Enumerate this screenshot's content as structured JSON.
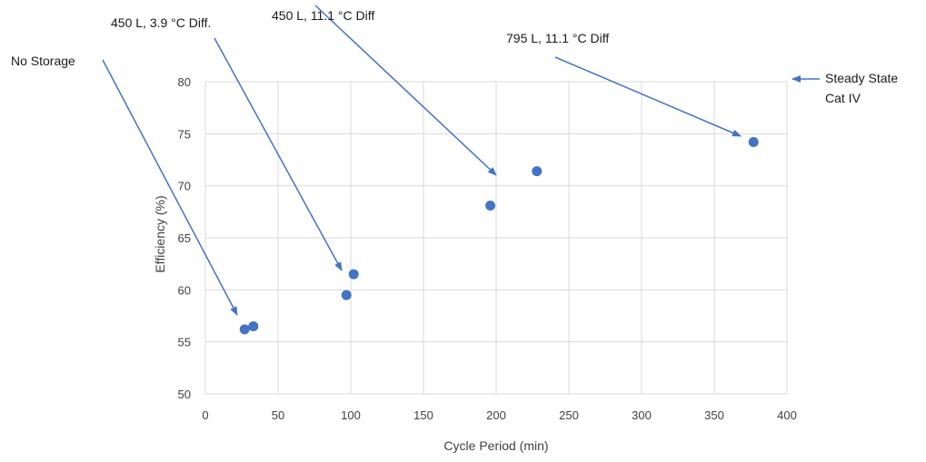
{
  "chart_data": {
    "type": "scatter",
    "xlabel": "Cycle Period (min)",
    "ylabel": "Efficiency (%)",
    "xlim": [
      0,
      400
    ],
    "ylim": [
      50,
      80
    ],
    "x_ticks": [
      0,
      50,
      100,
      150,
      200,
      250,
      300,
      350,
      400
    ],
    "y_ticks": [
      50,
      55,
      60,
      65,
      70,
      75,
      80
    ],
    "grid": true,
    "marker_color": "#4472C4",
    "arrow_color": "#4472C4",
    "points": [
      {
        "x": 27,
        "y": 56.2
      },
      {
        "x": 33,
        "y": 56.5
      },
      {
        "x": 97,
        "y": 59.5
      },
      {
        "x": 102,
        "y": 61.5
      },
      {
        "x": 196,
        "y": 68.1
      },
      {
        "x": 228,
        "y": 71.4
      },
      {
        "x": 377,
        "y": 74.2
      }
    ],
    "annotations": [
      {
        "text": "No Storage",
        "lines": [
          "No Storage"
        ]
      },
      {
        "text": "450 L, 3.9 °C Diff.",
        "lines": [
          "450 L, 3.9 °C Diff."
        ]
      },
      {
        "text": "450 L, 11.1 °C Diff",
        "lines": [
          "450 L, 11.1 °C Diff"
        ]
      },
      {
        "text": "795 L, 11.1 °C Diff",
        "lines": [
          "795 L, 11.1 °C Diff"
        ]
      },
      {
        "text": "Steady State Cat IV",
        "lines": [
          "Steady State",
          "Cat IV"
        ]
      }
    ]
  }
}
